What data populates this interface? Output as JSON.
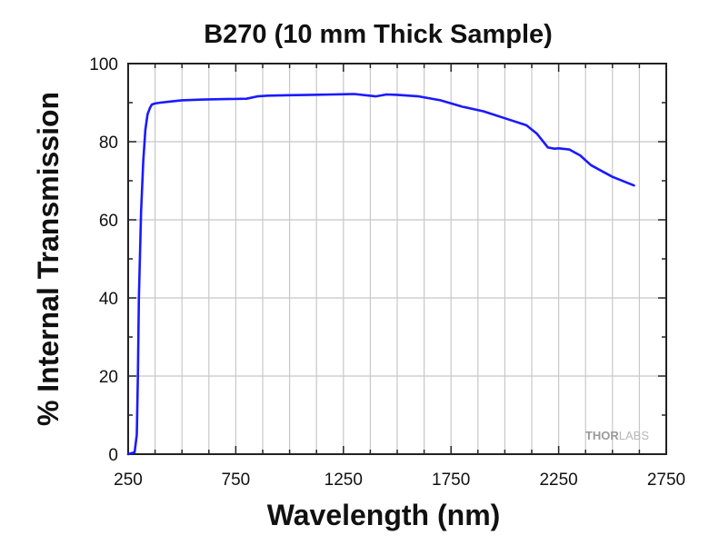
{
  "chart_data": {
    "type": "line",
    "title": "B270 (10 mm Thick Sample)",
    "xlabel": "Wavelength (nm)",
    "ylabel": "% Internal Transmission",
    "xlim": [
      250,
      2750
    ],
    "ylim": [
      0,
      100
    ],
    "xticks": [
      250,
      750,
      1250,
      1750,
      2250,
      2750
    ],
    "yticks": [
      0,
      20,
      40,
      60,
      80,
      100
    ],
    "grid": true,
    "series": [
      {
        "name": "B270",
        "color": "#1a1aff",
        "x": [
          250,
          280,
          290,
          295,
          300,
          310,
          320,
          330,
          340,
          350,
          360,
          375,
          400,
          450,
          500,
          600,
          700,
          800,
          850,
          900,
          1000,
          1100,
          1200,
          1300,
          1400,
          1450,
          1500,
          1600,
          1700,
          1800,
          1900,
          2000,
          2100,
          2150,
          2200,
          2230,
          2250,
          2300,
          2350,
          2400,
          2450,
          2500,
          2600
        ],
        "y": [
          0,
          0.5,
          5,
          20,
          40,
          62,
          75,
          83,
          87,
          88.5,
          89.5,
          89.8,
          90,
          90.3,
          90.6,
          90.8,
          90.9,
          91,
          91.6,
          91.8,
          91.9,
          92,
          92.1,
          92.2,
          91.6,
          92.1,
          92,
          91.6,
          90.6,
          89,
          87.8,
          86,
          84.2,
          82,
          78.5,
          78.2,
          78.3,
          78,
          76.5,
          74,
          72.5,
          71,
          68.8
        ]
      }
    ]
  },
  "watermark": {
    "brand_part1": "THOR",
    "brand_part2": "LABS"
  }
}
